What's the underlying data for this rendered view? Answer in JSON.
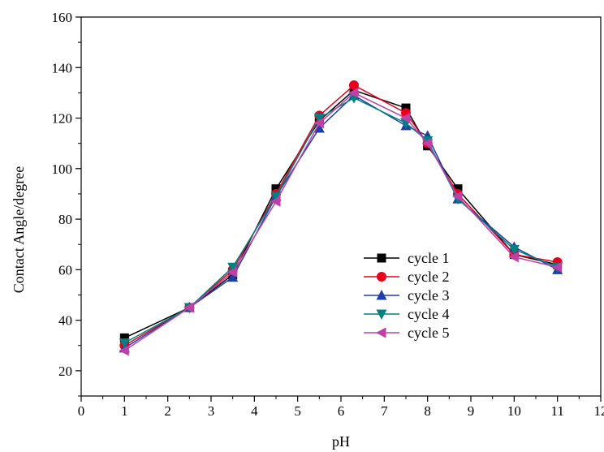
{
  "chart_data": {
    "type": "line",
    "title": "",
    "xlabel": "pH",
    "ylabel": "Contact Angle/degree",
    "xlim": [
      0,
      12
    ],
    "ylim": [
      10,
      160
    ],
    "xticks": [
      0,
      1,
      2,
      3,
      4,
      5,
      6,
      7,
      8,
      9,
      10,
      11,
      12
    ],
    "yticks": [
      20,
      40,
      60,
      80,
      100,
      120,
      140,
      160
    ],
    "grid": false,
    "legend_position": "lower-right",
    "x": [
      1,
      2.5,
      3.5,
      4.5,
      5.5,
      6.3,
      7.5,
      8,
      8.7,
      10,
      11
    ],
    "series": [
      {
        "name": "cycle 1",
        "marker": "square",
        "color": "#000000",
        "values": [
          33,
          45,
          58,
          92,
          119,
          131,
          124,
          109,
          92,
          66,
          62
        ]
      },
      {
        "name": "cycle 2",
        "marker": "circle",
        "color": "#e8001c",
        "values": [
          30,
          45,
          60,
          90,
          121,
          133,
          122,
          110,
          90,
          66,
          63
        ]
      },
      {
        "name": "cycle 3",
        "marker": "triangle-up",
        "color": "#1f3fa8",
        "values": [
          29,
          45,
          57,
          89,
          116,
          129,
          117,
          113,
          88,
          69,
          60
        ]
      },
      {
        "name": "cycle 4",
        "marker": "triangle-down",
        "color": "#00807f",
        "values": [
          31,
          45,
          61,
          89,
          120,
          128,
          118,
          111,
          88,
          68,
          61
        ]
      },
      {
        "name": "cycle 5",
        "marker": "triangle-left",
        "color": "#c040a8",
        "values": [
          28,
          45,
          59,
          87,
          118,
          130,
          120,
          110,
          89,
          65,
          61
        ]
      }
    ]
  }
}
